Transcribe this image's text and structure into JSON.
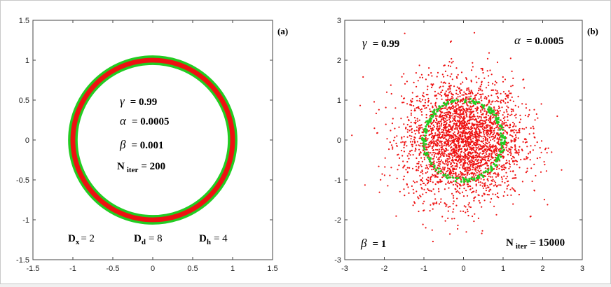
{
  "chart_data": [
    {
      "type": "scatter",
      "panel": "(a)",
      "xlim": [
        -1.5,
        1.5
      ],
      "ylim": [
        -1.5,
        1.5
      ],
      "xticks": [
        "-1.5",
        "-1",
        "-0.5",
        "0",
        "0.5",
        "1",
        "1.5"
      ],
      "yticks": [
        "1.5",
        "1",
        "0.5",
        "0",
        "-0.5",
        "-1",
        "-1.5"
      ],
      "series": [
        {
          "color": "#22cc22",
          "shape": "ring",
          "radius": 1.0,
          "band": 0.06
        },
        {
          "color": "#ee1111",
          "shape": "ring",
          "radius": 1.0,
          "band": 0.03
        }
      ],
      "annotations": {
        "gamma": {
          "symbol": "γ",
          "text": "=  0.99"
        },
        "alpha": {
          "symbol": "α",
          "text": "=  0.0005"
        },
        "beta": {
          "symbol": "β",
          "text": "=  0.001"
        },
        "niter": {
          "main": "N",
          "sub": "iter",
          "text": "=  200"
        },
        "dx": {
          "main": "D",
          "sub": "x",
          "text": "= 2"
        },
        "dd": {
          "main": "D",
          "sub": "d",
          "text": "= 8"
        },
        "dh": {
          "main": "D",
          "sub": "h",
          "text": "=  4"
        }
      }
    },
    {
      "type": "scatter",
      "panel": "(b)",
      "xlim": [
        -3,
        3
      ],
      "ylim": [
        -3,
        3
      ],
      "xticks": [
        "-3",
        "-2",
        "-1",
        "0",
        "1",
        "2",
        "3"
      ],
      "yticks": [
        "3",
        "2",
        "1",
        "0",
        "-1",
        "-2",
        "-3"
      ],
      "series": [
        {
          "color": "#ee1111",
          "shape": "cloud",
          "n_points": 3000,
          "spread": 0.75
        },
        {
          "color": "#22cc22",
          "shape": "ring",
          "radius": 1.0,
          "band": 0.05,
          "n_points": 220
        }
      ],
      "annotations": {
        "gamma": {
          "symbol": "γ",
          "text": "=  0.99"
        },
        "alpha": {
          "symbol": "α",
          "text": "=  0.0005"
        },
        "beta": {
          "symbol": "β",
          "text": "=  1"
        },
        "niter": {
          "main": "N",
          "sub": "iter",
          "text": "=  15000"
        }
      }
    }
  ]
}
